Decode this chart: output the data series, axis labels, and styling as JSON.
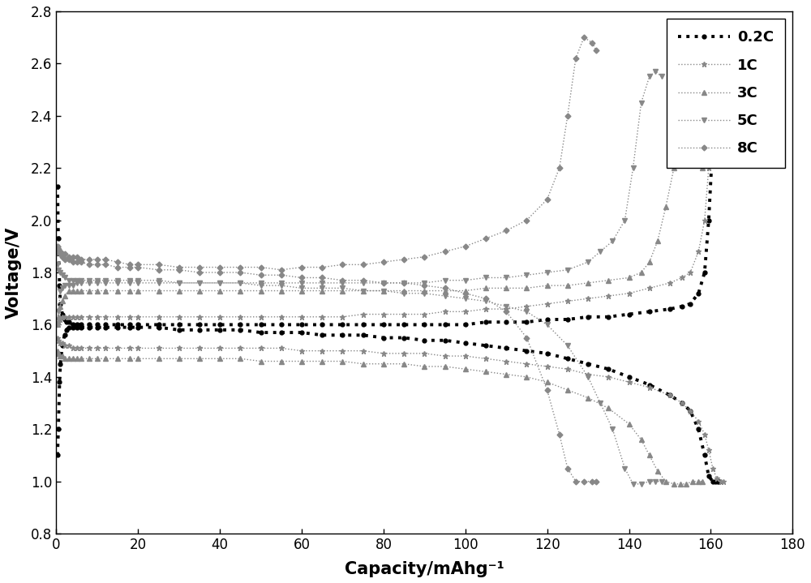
{
  "title": "",
  "xlabel": "Capacity/mAhg⁻¹",
  "ylabel": "Voltage/V",
  "xlim": [
    0,
    180
  ],
  "ylim": [
    0.8,
    2.8
  ],
  "xticks": [
    0,
    20,
    40,
    60,
    80,
    100,
    120,
    140,
    160,
    180
  ],
  "yticks": [
    0.8,
    1.0,
    1.2,
    1.4,
    1.6,
    1.8,
    2.0,
    2.2,
    2.4,
    2.6,
    2.8
  ],
  "background_color": "#ffffff",
  "line_color": "#888888",
  "series": [
    {
      "label": "0.2C",
      "marker": "o",
      "markersize": 3.5,
      "linewidth_charge": 2.5,
      "linewidth_discharge": 2.5,
      "charge_x": [
        0.3,
        0.5,
        0.8,
        1.0,
        1.5,
        2.0,
        2.5,
        3.0,
        4.0,
        5.0,
        6.0,
        8.0,
        10.0,
        12.0,
        15.0,
        18.0,
        20.0,
        25.0,
        30.0,
        35.0,
        40.0,
        45.0,
        50.0,
        55.0,
        60.0,
        65.0,
        70.0,
        75.0,
        80.0,
        85.0,
        90.0,
        95.0,
        100.0,
        105.0,
        110.0,
        115.0,
        120.0,
        125.0,
        130.0,
        135.0,
        140.0,
        145.0,
        150.0,
        153.0,
        155.0,
        157.0,
        158.5,
        159.5,
        160.5,
        161.2,
        161.8,
        162.2
      ],
      "charge_y": [
        2.13,
        1.93,
        1.75,
        1.68,
        1.64,
        1.62,
        1.61,
        1.61,
        1.6,
        1.6,
        1.6,
        1.6,
        1.6,
        1.6,
        1.6,
        1.6,
        1.6,
        1.6,
        1.6,
        1.6,
        1.6,
        1.6,
        1.6,
        1.6,
        1.6,
        1.6,
        1.6,
        1.6,
        1.6,
        1.6,
        1.6,
        1.6,
        1.6,
        1.61,
        1.61,
        1.61,
        1.62,
        1.62,
        1.63,
        1.63,
        1.64,
        1.65,
        1.66,
        1.67,
        1.68,
        1.72,
        1.8,
        2.0,
        2.3,
        2.48,
        2.51,
        2.52
      ],
      "discharge_x": [
        0.3,
        0.5,
        0.8,
        1.0,
        1.5,
        2.0,
        2.5,
        3.0,
        4.0,
        5.0,
        6.0,
        8.0,
        10.0,
        12.0,
        15.0,
        18.0,
        20.0,
        25.0,
        30.0,
        35.0,
        40.0,
        45.0,
        50.0,
        55.0,
        60.0,
        65.0,
        70.0,
        75.0,
        80.0,
        85.0,
        90.0,
        95.0,
        100.0,
        105.0,
        110.0,
        115.0,
        120.0,
        125.0,
        130.0,
        135.0,
        140.0,
        145.0,
        150.0,
        153.0,
        155.0,
        157.0,
        158.5,
        159.5,
        160.5,
        161.2,
        161.8,
        162.2
      ],
      "discharge_y": [
        1.1,
        1.2,
        1.38,
        1.45,
        1.52,
        1.56,
        1.58,
        1.59,
        1.59,
        1.59,
        1.59,
        1.59,
        1.59,
        1.59,
        1.59,
        1.59,
        1.59,
        1.59,
        1.58,
        1.58,
        1.58,
        1.58,
        1.57,
        1.57,
        1.57,
        1.56,
        1.56,
        1.56,
        1.55,
        1.55,
        1.54,
        1.54,
        1.53,
        1.52,
        1.51,
        1.5,
        1.49,
        1.47,
        1.45,
        1.43,
        1.4,
        1.37,
        1.33,
        1.3,
        1.27,
        1.2,
        1.1,
        1.02,
        1.0,
        1.0,
        1.0,
        1.0
      ]
    },
    {
      "label": "1C",
      "marker": "*",
      "markersize": 5,
      "linewidth_charge": 1.0,
      "linewidth_discharge": 1.0,
      "charge_x": [
        0.3,
        0.5,
        1.0,
        1.5,
        2.0,
        3.0,
        4.0,
        5.0,
        6.0,
        8.0,
        10.0,
        12.0,
        15.0,
        18.0,
        20.0,
        25.0,
        30.0,
        35.0,
        40.0,
        45.0,
        50.0,
        55.0,
        60.0,
        65.0,
        70.0,
        75.0,
        80.0,
        85.0,
        90.0,
        95.0,
        100.0,
        105.0,
        110.0,
        115.0,
        120.0,
        125.0,
        130.0,
        135.0,
        140.0,
        145.0,
        150.0,
        153.0,
        155.0,
        157.0,
        158.5,
        159.5,
        160.5,
        161.5,
        162.5,
        163.0
      ],
      "charge_y": [
        1.6,
        1.61,
        1.62,
        1.63,
        1.63,
        1.63,
        1.63,
        1.63,
        1.63,
        1.63,
        1.63,
        1.63,
        1.63,
        1.63,
        1.63,
        1.63,
        1.63,
        1.63,
        1.63,
        1.63,
        1.63,
        1.63,
        1.63,
        1.63,
        1.63,
        1.64,
        1.64,
        1.64,
        1.64,
        1.65,
        1.65,
        1.66,
        1.66,
        1.67,
        1.68,
        1.69,
        1.7,
        1.71,
        1.72,
        1.74,
        1.76,
        1.78,
        1.8,
        1.88,
        2.0,
        2.2,
        2.45,
        2.53,
        2.54,
        2.55
      ],
      "discharge_x": [
        0.3,
        0.5,
        1.0,
        1.5,
        2.0,
        3.0,
        4.0,
        5.0,
        6.0,
        8.0,
        10.0,
        12.0,
        15.0,
        18.0,
        20.0,
        25.0,
        30.0,
        35.0,
        40.0,
        45.0,
        50.0,
        55.0,
        60.0,
        65.0,
        70.0,
        75.0,
        80.0,
        85.0,
        90.0,
        95.0,
        100.0,
        105.0,
        110.0,
        115.0,
        120.0,
        125.0,
        130.0,
        135.0,
        140.0,
        145.0,
        150.0,
        153.0,
        155.0,
        157.0,
        158.5,
        159.5,
        160.5,
        161.5,
        162.5,
        163.0
      ],
      "discharge_y": [
        1.55,
        1.54,
        1.53,
        1.53,
        1.52,
        1.52,
        1.51,
        1.51,
        1.51,
        1.51,
        1.51,
        1.51,
        1.51,
        1.51,
        1.51,
        1.51,
        1.51,
        1.51,
        1.51,
        1.51,
        1.51,
        1.51,
        1.5,
        1.5,
        1.5,
        1.5,
        1.49,
        1.49,
        1.49,
        1.48,
        1.48,
        1.47,
        1.46,
        1.45,
        1.44,
        1.43,
        1.41,
        1.4,
        1.38,
        1.36,
        1.33,
        1.3,
        1.27,
        1.23,
        1.18,
        1.12,
        1.05,
        1.01,
        1.0,
        1.0
      ]
    },
    {
      "label": "3C",
      "marker": "^",
      "markersize": 4.5,
      "linewidth_charge": 1.0,
      "linewidth_discharge": 1.0,
      "charge_x": [
        0.3,
        0.5,
        1.0,
        1.5,
        2.0,
        3.0,
        4.0,
        5.0,
        6.0,
        8.0,
        10.0,
        12.0,
        15.0,
        18.0,
        20.0,
        25.0,
        30.0,
        35.0,
        40.0,
        45.0,
        50.0,
        55.0,
        60.0,
        65.0,
        70.0,
        75.0,
        80.0,
        85.0,
        90.0,
        95.0,
        100.0,
        105.0,
        110.0,
        115.0,
        120.0,
        125.0,
        130.0,
        135.0,
        140.0,
        143.0,
        145.0,
        147.0,
        149.0,
        151.0,
        152.5,
        154.0,
        155.5,
        157.0,
        158.0
      ],
      "charge_y": [
        1.6,
        1.63,
        1.67,
        1.69,
        1.71,
        1.73,
        1.73,
        1.73,
        1.73,
        1.73,
        1.73,
        1.73,
        1.73,
        1.73,
        1.73,
        1.73,
        1.73,
        1.73,
        1.73,
        1.73,
        1.73,
        1.73,
        1.73,
        1.73,
        1.73,
        1.73,
        1.73,
        1.73,
        1.73,
        1.73,
        1.73,
        1.74,
        1.74,
        1.74,
        1.75,
        1.75,
        1.76,
        1.77,
        1.78,
        1.8,
        1.84,
        1.92,
        2.05,
        2.2,
        2.26,
        2.28,
        2.25,
        2.22,
        2.2
      ],
      "discharge_x": [
        0.3,
        0.5,
        1.0,
        1.5,
        2.0,
        3.0,
        4.0,
        5.0,
        6.0,
        8.0,
        10.0,
        12.0,
        15.0,
        18.0,
        20.0,
        25.0,
        30.0,
        35.0,
        40.0,
        45.0,
        50.0,
        55.0,
        60.0,
        65.0,
        70.0,
        75.0,
        80.0,
        85.0,
        90.0,
        95.0,
        100.0,
        105.0,
        110.0,
        115.0,
        120.0,
        125.0,
        130.0,
        135.0,
        140.0,
        143.0,
        145.0,
        147.0,
        149.0,
        151.0,
        152.5,
        154.0,
        155.5,
        157.0,
        158.0
      ],
      "discharge_y": [
        1.5,
        1.49,
        1.48,
        1.48,
        1.47,
        1.47,
        1.47,
        1.47,
        1.47,
        1.47,
        1.47,
        1.47,
        1.47,
        1.47,
        1.47,
        1.47,
        1.47,
        1.47,
        1.47,
        1.47,
        1.46,
        1.46,
        1.46,
        1.46,
        1.46,
        1.45,
        1.45,
        1.45,
        1.44,
        1.44,
        1.43,
        1.42,
        1.41,
        1.4,
        1.38,
        1.35,
        1.32,
        1.28,
        1.22,
        1.16,
        1.1,
        1.04,
        1.0,
        0.99,
        0.99,
        0.99,
        1.0,
        1.0,
        1.0
      ]
    },
    {
      "label": "5C",
      "marker": "v",
      "markersize": 4.5,
      "linewidth_charge": 1.0,
      "linewidth_discharge": 1.0,
      "charge_x": [
        0.3,
        0.5,
        1.0,
        1.5,
        2.0,
        3.0,
        4.0,
        5.0,
        6.0,
        8.0,
        10.0,
        12.0,
        15.0,
        18.0,
        20.0,
        25.0,
        30.0,
        35.0,
        40.0,
        45.0,
        50.0,
        55.0,
        60.0,
        65.0,
        70.0,
        75.0,
        80.0,
        85.0,
        90.0,
        95.0,
        100.0,
        105.0,
        110.0,
        115.0,
        120.0,
        125.0,
        130.0,
        133.0,
        136.0,
        139.0,
        141.0,
        143.0,
        145.0,
        146.5,
        148.0
      ],
      "charge_y": [
        1.6,
        1.65,
        1.73,
        1.74,
        1.75,
        1.75,
        1.75,
        1.76,
        1.76,
        1.76,
        1.76,
        1.76,
        1.76,
        1.76,
        1.76,
        1.76,
        1.76,
        1.76,
        1.76,
        1.76,
        1.76,
        1.76,
        1.76,
        1.76,
        1.76,
        1.76,
        1.76,
        1.76,
        1.76,
        1.77,
        1.77,
        1.78,
        1.78,
        1.79,
        1.8,
        1.81,
        1.84,
        1.88,
        1.92,
        2.0,
        2.2,
        2.45,
        2.55,
        2.57,
        2.55
      ],
      "discharge_x": [
        0.3,
        0.5,
        1.0,
        1.5,
        2.0,
        3.0,
        4.0,
        5.0,
        6.0,
        8.0,
        10.0,
        12.0,
        15.0,
        18.0,
        20.0,
        25.0,
        30.0,
        35.0,
        40.0,
        45.0,
        50.0,
        55.0,
        60.0,
        65.0,
        70.0,
        75.0,
        80.0,
        85.0,
        90.0,
        95.0,
        100.0,
        105.0,
        110.0,
        115.0,
        120.0,
        125.0,
        130.0,
        133.0,
        136.0,
        139.0,
        141.0,
        143.0,
        145.0,
        146.5,
        148.0
      ],
      "discharge_y": [
        1.83,
        1.81,
        1.8,
        1.79,
        1.78,
        1.77,
        1.77,
        1.77,
        1.77,
        1.77,
        1.77,
        1.77,
        1.77,
        1.77,
        1.77,
        1.77,
        1.76,
        1.76,
        1.76,
        1.76,
        1.75,
        1.75,
        1.74,
        1.74,
        1.74,
        1.73,
        1.73,
        1.72,
        1.72,
        1.71,
        1.7,
        1.69,
        1.67,
        1.65,
        1.6,
        1.52,
        1.4,
        1.3,
        1.2,
        1.05,
        0.99,
        0.99,
        1.0,
        1.0,
        1.0
      ]
    },
    {
      "label": "8C",
      "marker": "D",
      "markersize": 3.5,
      "linewidth_charge": 1.0,
      "linewidth_discharge": 1.0,
      "charge_x": [
        0.3,
        0.5,
        1.0,
        1.5,
        2.0,
        3.0,
        4.0,
        5.0,
        6.0,
        8.0,
        10.0,
        12.0,
        15.0,
        18.0,
        20.0,
        25.0,
        30.0,
        35.0,
        40.0,
        45.0,
        50.0,
        55.0,
        60.0,
        65.0,
        70.0,
        75.0,
        80.0,
        85.0,
        90.0,
        95.0,
        100.0,
        105.0,
        110.0,
        115.0,
        120.0,
        123.0,
        125.0,
        127.0,
        129.0,
        131.0,
        132.0
      ],
      "charge_y": [
        1.9,
        1.89,
        1.88,
        1.87,
        1.87,
        1.86,
        1.86,
        1.86,
        1.85,
        1.85,
        1.85,
        1.85,
        1.84,
        1.83,
        1.83,
        1.83,
        1.82,
        1.82,
        1.82,
        1.82,
        1.82,
        1.81,
        1.82,
        1.82,
        1.83,
        1.83,
        1.84,
        1.85,
        1.86,
        1.88,
        1.9,
        1.93,
        1.96,
        2.0,
        2.08,
        2.2,
        2.4,
        2.62,
        2.7,
        2.68,
        2.65
      ],
      "discharge_x": [
        0.3,
        0.5,
        1.0,
        1.5,
        2.0,
        3.0,
        4.0,
        5.0,
        6.0,
        8.0,
        10.0,
        12.0,
        15.0,
        18.0,
        20.0,
        25.0,
        30.0,
        35.0,
        40.0,
        45.0,
        50.0,
        55.0,
        60.0,
        65.0,
        70.0,
        75.0,
        80.0,
        85.0,
        90.0,
        95.0,
        100.0,
        105.0,
        110.0,
        115.0,
        120.0,
        123.0,
        125.0,
        127.0,
        129.0,
        131.0,
        132.0
      ],
      "discharge_y": [
        1.9,
        1.88,
        1.87,
        1.86,
        1.85,
        1.85,
        1.84,
        1.84,
        1.84,
        1.83,
        1.83,
        1.83,
        1.82,
        1.82,
        1.82,
        1.81,
        1.81,
        1.8,
        1.8,
        1.8,
        1.79,
        1.79,
        1.78,
        1.78,
        1.77,
        1.77,
        1.76,
        1.76,
        1.75,
        1.74,
        1.72,
        1.7,
        1.65,
        1.55,
        1.35,
        1.18,
        1.05,
        1.0,
        1.0,
        1.0,
        1.0
      ]
    }
  ]
}
